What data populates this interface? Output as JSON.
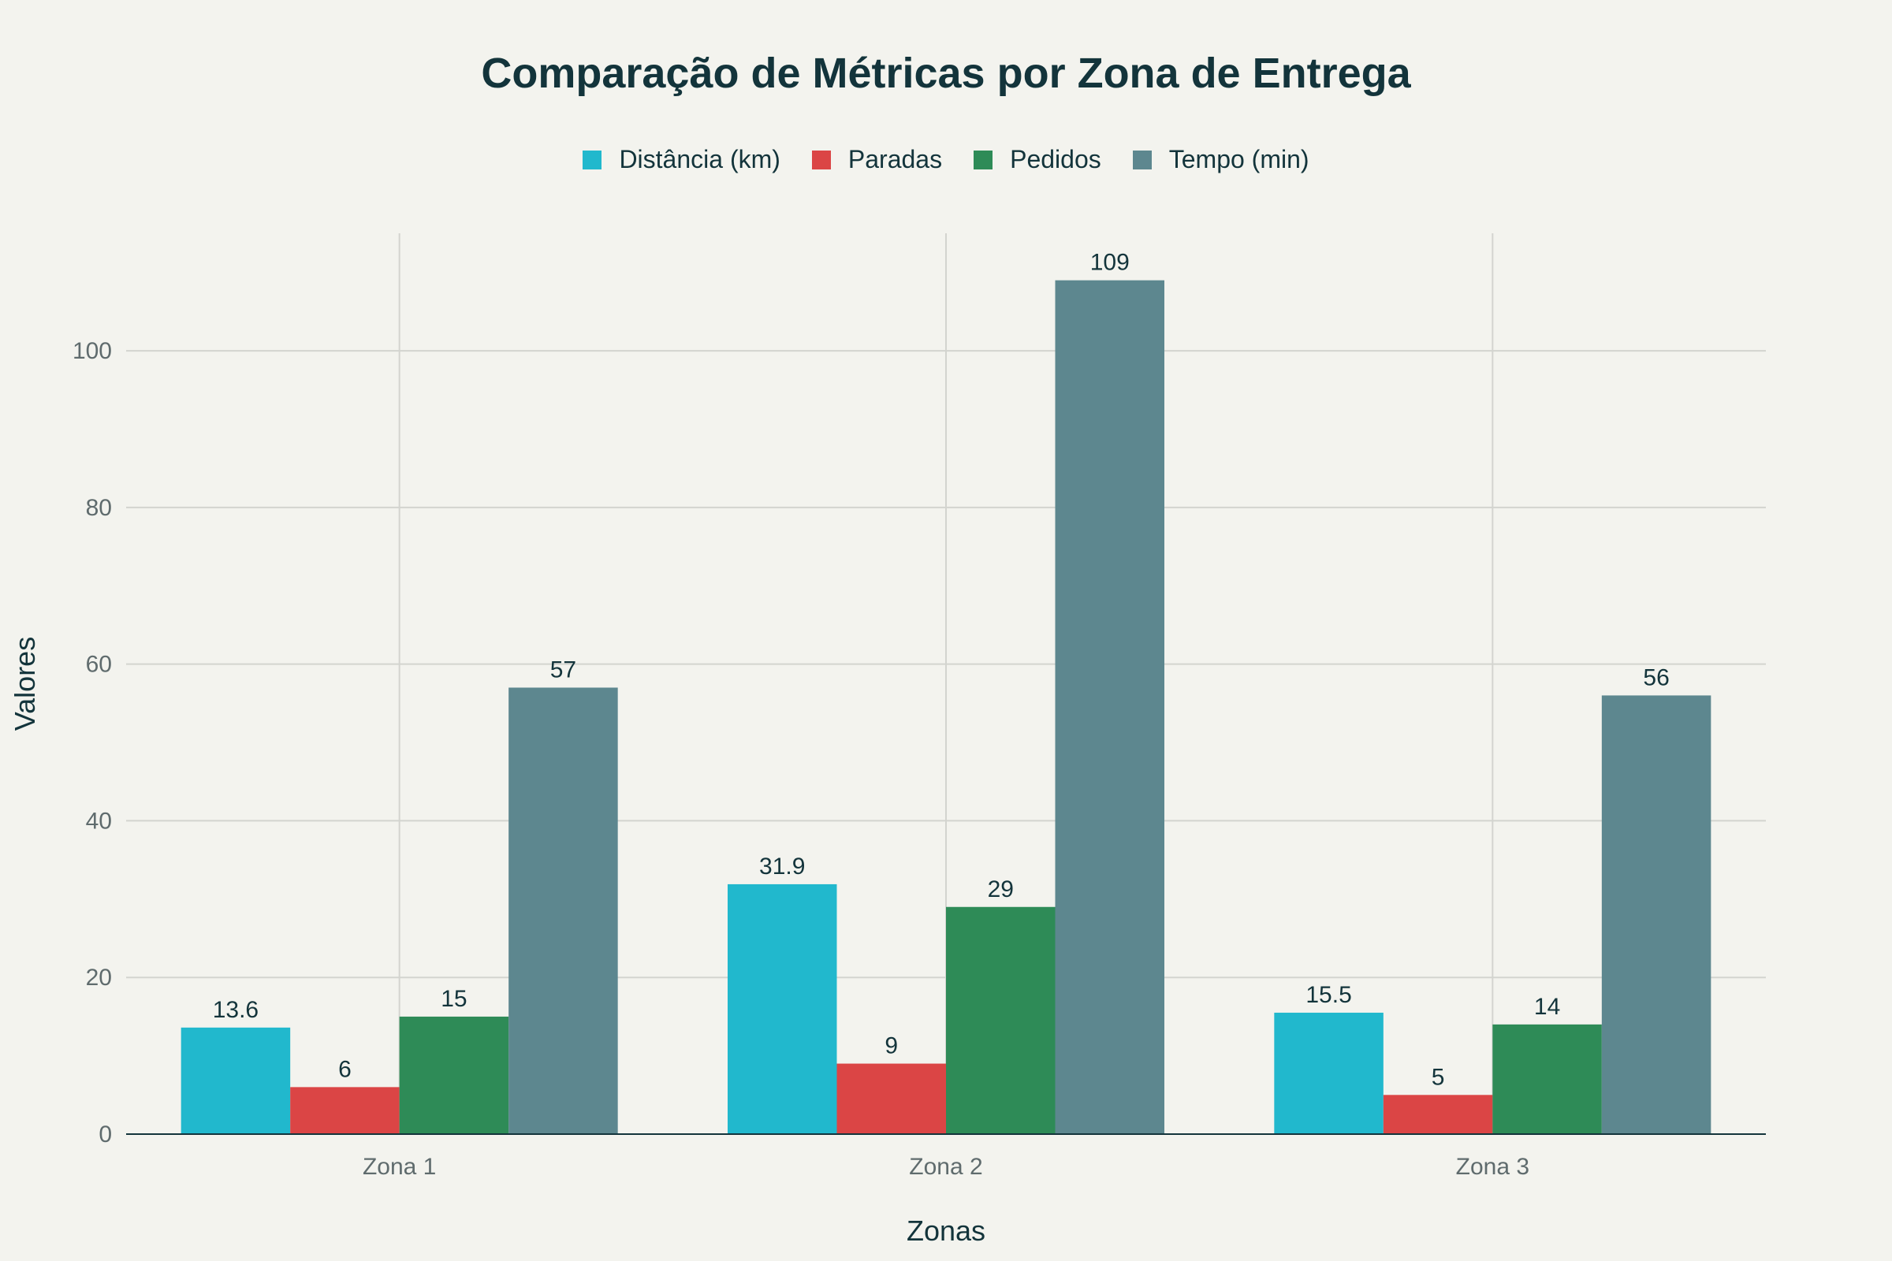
{
  "chart_data": {
    "type": "bar",
    "title": "Comparação de Métricas por Zona de Entrega",
    "xlabel": "Zonas",
    "ylabel": "Valores",
    "categories": [
      "Zona 1",
      "Zona 2",
      "Zona 3"
    ],
    "series": [
      {
        "name": "Distância (km)",
        "color": "#21b8cd",
        "values": [
          13.6,
          31.9,
          15.5
        ]
      },
      {
        "name": "Paradas",
        "color": "#db4545",
        "values": [
          6,
          9,
          5
        ]
      },
      {
        "name": "Pedidos",
        "color": "#2e8b57",
        "values": [
          15,
          29,
          14
        ]
      },
      {
        "name": "Tempo (min)",
        "color": "#5d878f",
        "values": [
          57,
          109,
          56
        ]
      }
    ],
    "ylim": [
      0,
      115
    ],
    "yticks": [
      0,
      20,
      40,
      60,
      80,
      100
    ],
    "grid": true,
    "legend_position": "top-center"
  }
}
